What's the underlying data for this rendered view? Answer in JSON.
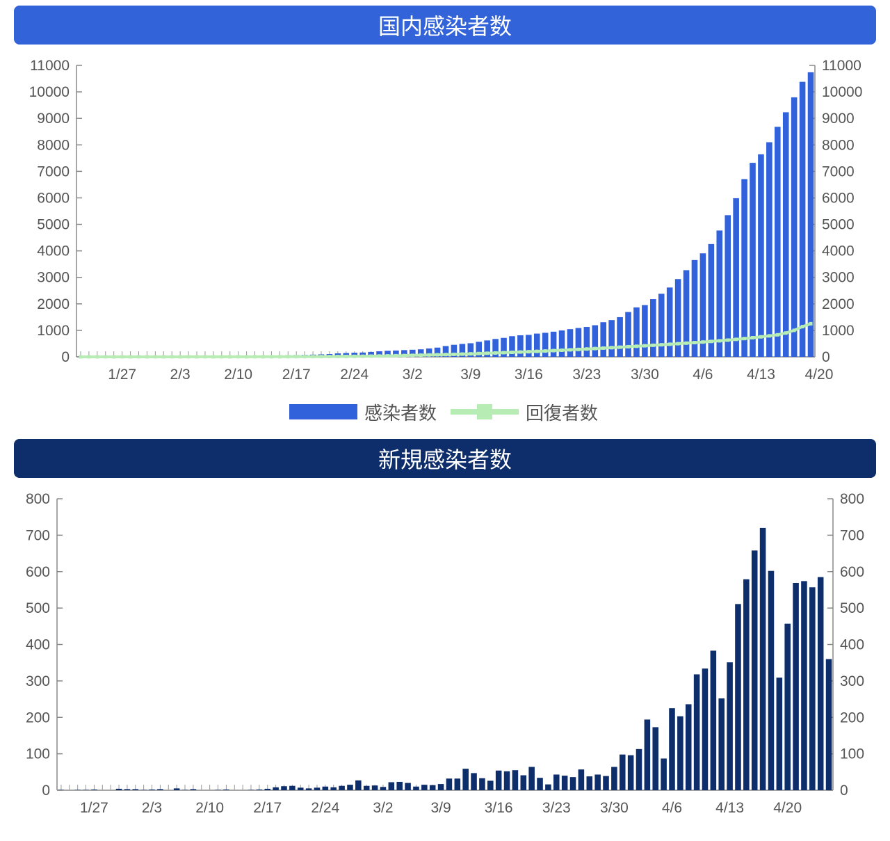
{
  "colors": {
    "top_banner": "#3263d9",
    "bottom_banner": "#0d2d6b",
    "cumulative_bar": "#3162dc",
    "recovered_line": "#b7ecb4",
    "new_bar": "#0d2d6b",
    "axis": "#888888",
    "tick_text": "#555555"
  },
  "chart_data": [
    {
      "type": "bar",
      "title": "国内感染者数",
      "x_tick_labels": [
        "1/27",
        "2/3",
        "2/10",
        "2/17",
        "2/24",
        "3/2",
        "3/9",
        "3/16",
        "3/23",
        "3/30",
        "4/6",
        "4/13",
        "4/20"
      ],
      "ylim": [
        0,
        11000
      ],
      "y_ticks": [
        0,
        1000,
        2000,
        3000,
        4000,
        5000,
        6000,
        7000,
        8000,
        9000,
        10000,
        11000
      ],
      "y_axis_both_sides": true,
      "legend_position": "bottom",
      "series": [
        {
          "name": "感染者数",
          "kind": "bar",
          "values": [
            4,
            4,
            4,
            4,
            4,
            4,
            8,
            11,
            12,
            14,
            17,
            20,
            20,
            25,
            25,
            25,
            26,
            26,
            26,
            26,
            26,
            28,
            33,
            41,
            53,
            59,
            66,
            74,
            84,
            93,
            105,
            132,
            144,
            156,
            164,
            186,
            210,
            230,
            239,
            254,
            268,
            284,
            317,
            349,
            408,
            455,
            488,
            514,
            568,
            620,
            675,
            716,
            780,
            814,
            829,
            878,
            908,
            950,
            996,
            1046,
            1089,
            1128,
            1193,
            1307,
            1387,
            1499,
            1693,
            1866,
            1953,
            2178,
            2381,
            2617,
            2935,
            3271,
            3654,
            3906,
            4257,
            4768,
            5347,
            5988,
            6709,
            7322,
            7645,
            8100,
            8682,
            9231,
            9795,
            10380,
            10740
          ]
        },
        {
          "name": "回復者数",
          "kind": "line",
          "values": [
            0,
            0,
            0,
            0,
            0,
            0,
            1,
            1,
            1,
            1,
            1,
            1,
            1,
            2,
            2,
            2,
            2,
            2,
            2,
            3,
            3,
            3,
            4,
            4,
            4,
            5,
            6,
            7,
            8,
            9,
            10,
            12,
            15,
            18,
            22,
            27,
            32,
            38,
            43,
            50,
            57,
            64,
            71,
            78,
            85,
            94,
            104,
            114,
            125,
            136,
            147,
            158,
            170,
            182,
            194,
            207,
            220,
            235,
            250,
            265,
            280,
            296,
            312,
            329,
            346,
            364,
            382,
            400,
            418,
            437,
            456,
            476,
            496,
            517,
            538,
            560,
            582,
            606,
            632,
            660,
            690,
            722,
            756,
            792,
            832,
            900,
            1000,
            1140,
            1250
          ]
        }
      ]
    },
    {
      "type": "bar",
      "title": "新規感染者数",
      "x_tick_labels": [
        "1/27",
        "2/3",
        "2/10",
        "2/17",
        "2/24",
        "3/2",
        "3/9",
        "3/16",
        "3/23",
        "3/30",
        "4/6",
        "4/13",
        "4/20"
      ],
      "ylim": [
        0,
        800
      ],
      "y_ticks": [
        0,
        100,
        200,
        300,
        400,
        500,
        600,
        700,
        800
      ],
      "y_axis_both_sides": true,
      "series": [
        {
          "name": "新規感染者数",
          "kind": "bar",
          "values": [
            1,
            0,
            1,
            1,
            2,
            0,
            0,
            4,
            3,
            3,
            1,
            2,
            3,
            0,
            5,
            1,
            3,
            0,
            0,
            1,
            2,
            0,
            0,
            1,
            2,
            4,
            8,
            11,
            12,
            7,
            5,
            7,
            10,
            8,
            12,
            15,
            27,
            12,
            13,
            9,
            22,
            23,
            20,
            10,
            15,
            14,
            17,
            32,
            32,
            59,
            47,
            33,
            26,
            54,
            52,
            55,
            41,
            64,
            34,
            16,
            43,
            40,
            36,
            57,
            38,
            43,
            39,
            64,
            98,
            96,
            113,
            194,
            173,
            87,
            225,
            203,
            236,
            318,
            334,
            383,
            252,
            351,
            511,
            579,
            658,
            720,
            602,
            309,
            457,
            569,
            574,
            557,
            585,
            360
          ]
        }
      ]
    }
  ]
}
